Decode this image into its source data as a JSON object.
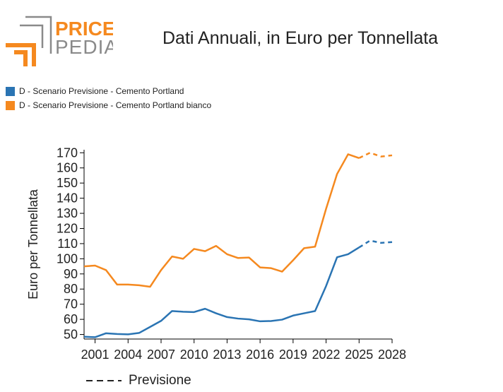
{
  "logo": {
    "line1": "PRICE",
    "line2": "PEDIA"
  },
  "colors": {
    "series1": "#2a74b3",
    "series2": "#f5891f",
    "axis": "#000000",
    "logo_orange": "#f5891f",
    "logo_gray": "#8a8a8a"
  },
  "chart_data": {
    "type": "line",
    "title": "Dati Annuali, in Euro per Tonnellata",
    "xlabel": "",
    "ylabel": "Euro per Tonnellata",
    "xlim": [
      2000,
      2028
    ],
    "ylim": [
      47,
      172
    ],
    "xticks": [
      2001,
      2004,
      2007,
      2010,
      2013,
      2016,
      2019,
      2022,
      2025,
      2028
    ],
    "yticks": [
      50,
      60,
      70,
      80,
      90,
      100,
      110,
      120,
      130,
      140,
      150,
      160,
      170
    ],
    "grid": false,
    "legend_position": "top-left",
    "series": [
      {
        "name": "D - Scenario Previsione - Cemento Portland",
        "color": "#2a74b3",
        "x": [
          2000,
          2001,
          2002,
          2003,
          2004,
          2005,
          2006,
          2007,
          2008,
          2009,
          2010,
          2011,
          2012,
          2013,
          2014,
          2015,
          2016,
          2017,
          2018,
          2019,
          2020,
          2021,
          2022,
          2023,
          2024,
          2025
        ],
        "y": [
          48.5,
          48.2,
          50.8,
          50.3,
          50.1,
          51.0,
          55.0,
          59.0,
          65.5,
          65.0,
          64.8,
          67.0,
          64.0,
          61.5,
          60.5,
          60.0,
          58.7,
          58.9,
          59.8,
          62.5,
          64.0,
          65.5,
          82.0,
          101.0,
          103.0,
          107.5
        ],
        "forecast": {
          "x": [
            2025,
            2026,
            2027,
            2028
          ],
          "y": [
            107.5,
            112.0,
            110.5,
            111.0
          ]
        }
      },
      {
        "name": "D - Scenario Previsione - Cemento Portland bianco",
        "color": "#f5891f",
        "x": [
          2000,
          2001,
          2002,
          2003,
          2004,
          2005,
          2006,
          2007,
          2008,
          2009,
          2010,
          2011,
          2012,
          2013,
          2014,
          2015,
          2016,
          2017,
          2018,
          2019,
          2020,
          2021,
          2022,
          2023,
          2024,
          2025
        ],
        "y": [
          95.0,
          95.5,
          92.5,
          83.0,
          83.0,
          82.5,
          81.5,
          92.5,
          101.5,
          100.0,
          106.5,
          105.0,
          108.5,
          103.0,
          100.5,
          100.8,
          94.3,
          93.8,
          91.5,
          99.0,
          107.0,
          108.0,
          133.0,
          156.0,
          169.0,
          166.5
        ],
        "forecast": {
          "x": [
            2025,
            2026,
            2027,
            2028
          ],
          "y": [
            166.5,
            170.0,
            167.5,
            168.3
          ]
        }
      }
    ],
    "forecast_label": "Previsione"
  }
}
